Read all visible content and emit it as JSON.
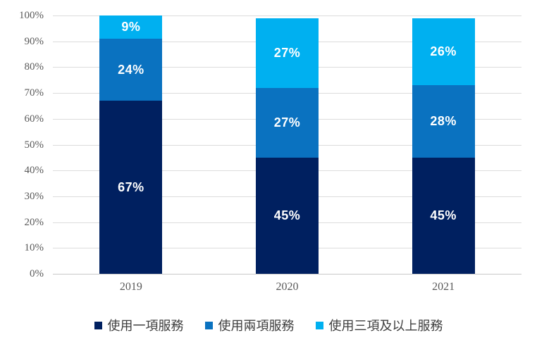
{
  "chart_data": {
    "type": "bar",
    "stacked": true,
    "percent_stacked": true,
    "title": "",
    "xlabel": "",
    "ylabel": "",
    "categories": [
      "2019",
      "2020",
      "2021"
    ],
    "series": [
      {
        "name": "使用一項服務",
        "color": "#002060",
        "values": [
          67,
          45,
          45
        ],
        "labels": [
          "67%",
          "45%",
          "45%"
        ]
      },
      {
        "name": "使用兩項服務",
        "color": "#0A72C0",
        "values": [
          24,
          27,
          28
        ],
        "labels": [
          "24%",
          "27%",
          "28%"
        ]
      },
      {
        "name": "使用三項及以上服務",
        "color": "#00B0F0",
        "values": [
          9,
          27,
          26
        ],
        "labels": [
          "9%",
          "27%",
          "26%"
        ]
      }
    ],
    "y_ticks": [
      "0%",
      "10%",
      "20%",
      "30%",
      "40%",
      "50%",
      "60%",
      "70%",
      "80%",
      "90%",
      "100%"
    ],
    "ylim": [
      0,
      100
    ],
    "grid": true,
    "legend_position": "bottom"
  },
  "colors": {
    "background": "#ffffff",
    "gridline": "#dcdcdc",
    "axis_line": "#c8c8c8",
    "axis_text": "#595959",
    "legend_text": "#3d3d3d",
    "data_label_text": "#ffffff"
  }
}
